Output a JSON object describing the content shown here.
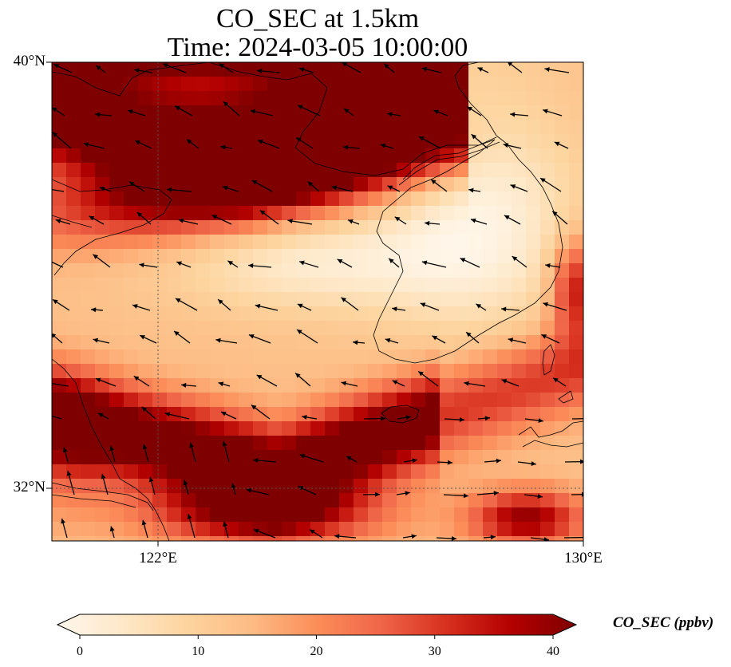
{
  "title": {
    "line1": "CO_SEC at 1.5km",
    "line2": "Time: 2024-03-05 10:00:00"
  },
  "axes": {
    "lat_labels": [
      "40°N",
      "32°N"
    ],
    "lon_labels": [
      "122°E",
      "130°E"
    ],
    "lat_range": [
      31,
      40
    ],
    "lon_range": [
      120,
      130
    ]
  },
  "colorbar": {
    "label": "CO_SEC (ppbv)",
    "ticks": [
      "0",
      "10",
      "20",
      "30",
      "40"
    ],
    "range": [
      0,
      40
    ],
    "colormap": [
      "#fff7ec",
      "#fee8c8",
      "#fdd49e",
      "#fdbb84",
      "#fc8d59",
      "#ef6548",
      "#d7301f",
      "#b30000",
      "#7f0000"
    ]
  },
  "chart_data": {
    "type": "heatmap",
    "title": "CO_SEC at 1.5km",
    "subtitle": "Time: 2024-03-05 10:00:00",
    "variable": "CO_SEC",
    "units": "ppbv",
    "level": "1.5km",
    "time": "2024-03-05 10:00:00",
    "vmin": 0,
    "vmax": 40,
    "lon_range": [
      120,
      130
    ],
    "lat_range": [
      31,
      40
    ],
    "gridlines": {
      "lon": [
        122
      ],
      "lat": [
        32
      ]
    },
    "features": [
      "high CO band over northern Yellow Sea and Bohai (>40 ppbv)",
      "high CO band across East China Sea south of 32N",
      "low values over Korean peninsula and central Yellow Sea",
      "wind vectors predominantly from northeast"
    ],
    "wind": "northeasterly to easterly arrows across domain"
  }
}
